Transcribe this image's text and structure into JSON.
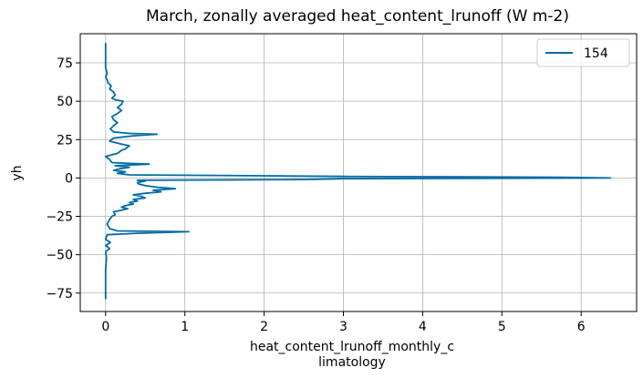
{
  "chart_data": {
    "type": "line",
    "title": "March, zonally averaged heat_content_lrunoff (W m-2)",
    "xlabel_line1": "heat_content_lrunoff_monthly_c",
    "xlabel_line2": "limatology",
    "ylabel": "yh",
    "xlim": [
      -0.32,
      6.7
    ],
    "ylim": [
      -87,
      94
    ],
    "xticks": [
      0,
      1,
      2,
      3,
      4,
      5,
      6
    ],
    "yticks": [
      -75,
      -50,
      -25,
      0,
      25,
      50,
      75
    ],
    "grid": true,
    "legend_position": "top-right",
    "line_color": "#006ba4",
    "series": [
      {
        "name": "154",
        "points": [
          [
            0.0,
            -79
          ],
          [
            0.0,
            -70
          ],
          [
            0.0,
            -60
          ],
          [
            0.01,
            -52
          ],
          [
            0.0,
            -48
          ],
          [
            0.05,
            -46
          ],
          [
            0.0,
            -44
          ],
          [
            0.06,
            -42
          ],
          [
            0.0,
            -40
          ],
          [
            0.02,
            -37
          ],
          [
            0.4,
            -36
          ],
          [
            1.05,
            -35
          ],
          [
            0.15,
            -34.5
          ],
          [
            0.05,
            -33
          ],
          [
            0.02,
            -30
          ],
          [
            0.05,
            -27
          ],
          [
            0.08,
            -25
          ],
          [
            0.12,
            -24
          ],
          [
            0.1,
            -22
          ],
          [
            0.2,
            -21
          ],
          [
            0.28,
            -20
          ],
          [
            0.2,
            -19
          ],
          [
            0.25,
            -18
          ],
          [
            0.35,
            -17
          ],
          [
            0.3,
            -16
          ],
          [
            0.4,
            -15
          ],
          [
            0.35,
            -14
          ],
          [
            0.5,
            -13
          ],
          [
            0.45,
            -12
          ],
          [
            0.35,
            -11
          ],
          [
            0.5,
            -10
          ],
          [
            0.7,
            -9
          ],
          [
            0.6,
            -8
          ],
          [
            0.88,
            -7
          ],
          [
            0.65,
            -6
          ],
          [
            0.5,
            -5
          ],
          [
            0.42,
            -4
          ],
          [
            0.4,
            -3
          ],
          [
            0.5,
            -2
          ],
          [
            0.4,
            -1.5
          ],
          [
            2.5,
            -1
          ],
          [
            3.0,
            -0.5
          ],
          [
            6.37,
            0
          ],
          [
            5.75,
            0.5
          ],
          [
            3.0,
            1
          ],
          [
            1.8,
            1.5
          ],
          [
            0.3,
            2
          ],
          [
            0.15,
            3
          ],
          [
            0.25,
            4
          ],
          [
            0.1,
            5
          ],
          [
            0.18,
            6
          ],
          [
            0.3,
            7
          ],
          [
            0.12,
            8
          ],
          [
            0.55,
            9
          ],
          [
            0.3,
            9.5
          ],
          [
            0.08,
            10
          ],
          [
            0.05,
            12
          ],
          [
            0.0,
            14
          ],
          [
            0.15,
            16
          ],
          [
            0.2,
            18
          ],
          [
            0.25,
            19
          ],
          [
            0.3,
            21
          ],
          [
            0.2,
            22
          ],
          [
            0.05,
            24
          ],
          [
            0.1,
            26
          ],
          [
            0.35,
            27.5
          ],
          [
            0.65,
            28.5
          ],
          [
            0.3,
            29
          ],
          [
            0.1,
            30
          ],
          [
            0.06,
            32
          ],
          [
            0.1,
            34
          ],
          [
            0.15,
            36
          ],
          [
            0.1,
            38
          ],
          [
            0.08,
            40
          ],
          [
            0.15,
            42
          ],
          [
            0.2,
            44
          ],
          [
            0.15,
            46
          ],
          [
            0.2,
            48
          ],
          [
            0.22,
            50
          ],
          [
            0.12,
            51
          ],
          [
            0.08,
            52
          ],
          [
            0.12,
            54
          ],
          [
            0.1,
            56
          ],
          [
            0.05,
            58
          ],
          [
            0.07,
            60
          ],
          [
            0.03,
            62
          ],
          [
            0.02,
            64
          ],
          [
            0.0,
            66
          ],
          [
            0.02,
            68
          ],
          [
            0.0,
            72
          ],
          [
            0.0,
            80
          ],
          [
            0.0,
            88
          ]
        ]
      }
    ]
  }
}
